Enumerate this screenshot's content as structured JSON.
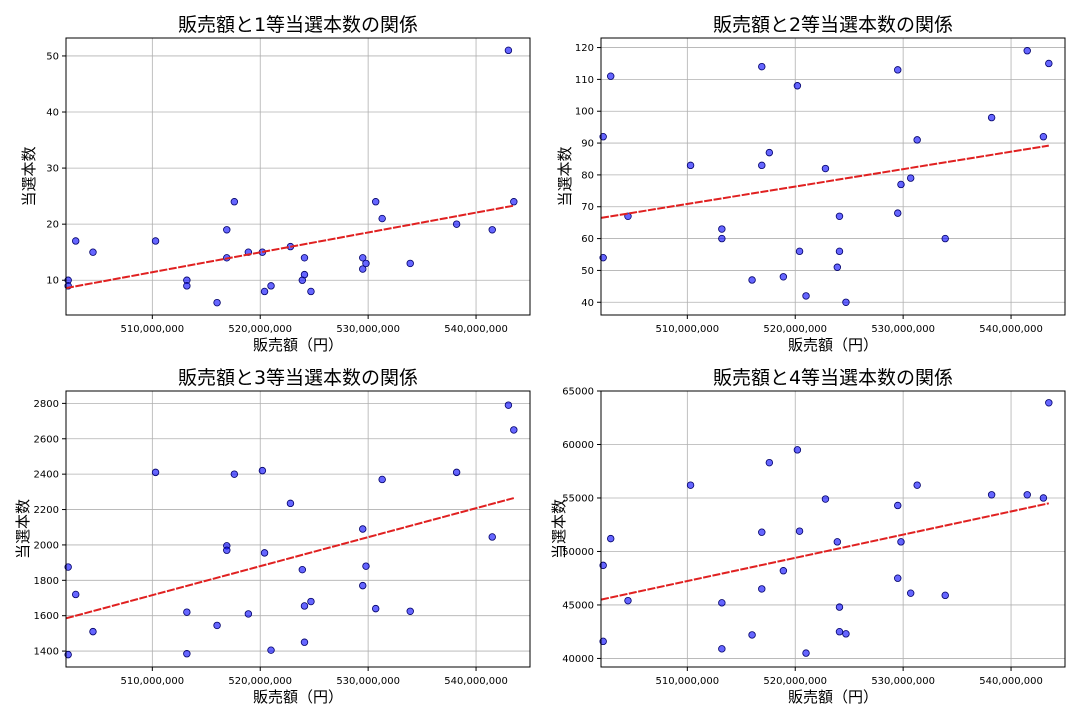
{
  "chart_data": [
    {
      "type": "scatter",
      "title": "販売額と1等当選本数の関係",
      "xlabel": "販売額（円）",
      "ylabel": "当選本数",
      "xlim": [
        502000000,
        545000000
      ],
      "ylim": [
        3.8,
        53.2
      ],
      "xticks": [
        510000000,
        520000000,
        530000000,
        540000000
      ],
      "xtick_labels": [
        "510,000,000",
        "520,000,000",
        "530,000,000",
        "540,000,000"
      ],
      "yticks": [
        10,
        20,
        30,
        40,
        50
      ],
      "ytick_labels": [
        "10",
        "20",
        "30",
        "40",
        "50"
      ],
      "grid": true,
      "trend": {
        "x": [
          502000000,
          543500000
        ],
        "y": [
          8.6,
          23.3
        ]
      },
      "x": [
        502200000,
        502200000,
        502900000,
        504500000,
        510300000,
        513200000,
        513200000,
        516000000,
        516900000,
        516900000,
        517600000,
        518900000,
        520200000,
        520400000,
        521000000,
        522800000,
        523900000,
        524100000,
        524100000,
        524700000,
        529500000,
        529500000,
        529800000,
        530700000,
        531300000,
        533900000,
        538200000,
        541500000,
        543000000,
        543500000
      ],
      "y": [
        10,
        9,
        17,
        15,
        17,
        10,
        9,
        6,
        19,
        14,
        24,
        15,
        15,
        8,
        9,
        16,
        10,
        14,
        11,
        8,
        14,
        12,
        13,
        24,
        21,
        13,
        20,
        19,
        51,
        24
      ]
    },
    {
      "type": "scatter",
      "title": "販売額と2等当選本数の関係",
      "xlabel": "販売額（円）",
      "ylabel": "当選本数",
      "xlim": [
        502000000,
        545000000
      ],
      "ylim": [
        36,
        123
      ],
      "xticks": [
        510000000,
        520000000,
        530000000,
        540000000
      ],
      "xtick_labels": [
        "510,000,000",
        "520,000,000",
        "530,000,000",
        "540,000,000"
      ],
      "yticks": [
        40,
        50,
        60,
        70,
        80,
        90,
        100,
        110,
        120
      ],
      "ytick_labels": [
        "40",
        "50",
        "60",
        "70",
        "80",
        "90",
        "100",
        "110",
        "120"
      ],
      "grid": true,
      "trend": {
        "x": [
          502000000,
          543500000
        ],
        "y": [
          66.5,
          89.2
        ]
      },
      "x": [
        502200000,
        502200000,
        502900000,
        504500000,
        510300000,
        513200000,
        513200000,
        516000000,
        516900000,
        516900000,
        517600000,
        518900000,
        520200000,
        520400000,
        521000000,
        522800000,
        523900000,
        524100000,
        524100000,
        524700000,
        529500000,
        529500000,
        529800000,
        530700000,
        531300000,
        533900000,
        538200000,
        541500000,
        543000000,
        543500000
      ],
      "y": [
        92,
        54,
        111,
        67,
        83,
        63,
        60,
        47,
        114,
        83,
        87,
        48,
        108,
        56,
        42,
        82,
        51,
        67,
        56,
        40,
        68,
        113,
        77,
        79,
        91,
        60,
        98,
        119,
        92,
        115
      ]
    },
    {
      "type": "scatter",
      "title": "販売額と3等当選本数の関係",
      "xlabel": "販売額（円）",
      "ylabel": "当選本数",
      "xlim": [
        502000000,
        545000000
      ],
      "ylim": [
        1310,
        2870
      ],
      "xticks": [
        510000000,
        520000000,
        530000000,
        540000000
      ],
      "xtick_labels": [
        "510,000,000",
        "520,000,000",
        "530,000,000",
        "540,000,000"
      ],
      "yticks": [
        1400,
        1600,
        1800,
        2000,
        2200,
        2400,
        2600,
        2800
      ],
      "ytick_labels": [
        "1400",
        "1600",
        "1800",
        "2000",
        "2200",
        "2400",
        "2600",
        "2800"
      ],
      "grid": true,
      "trend": {
        "x": [
          502000000,
          543500000
        ],
        "y": [
          1585,
          2265
        ]
      },
      "x": [
        502200000,
        502200000,
        502900000,
        504500000,
        510300000,
        513200000,
        513200000,
        516000000,
        516900000,
        516900000,
        517600000,
        518900000,
        520200000,
        520400000,
        521000000,
        522800000,
        523900000,
        524100000,
        524100000,
        524700000,
        529500000,
        529500000,
        529800000,
        530700000,
        531300000,
        533900000,
        538200000,
        541500000,
        543000000,
        543500000
      ],
      "y": [
        1875,
        1380,
        1720,
        1510,
        2410,
        1620,
        1385,
        1545,
        1995,
        1970,
        2400,
        1610,
        2420,
        1955,
        1405,
        2235,
        1860,
        1655,
        1450,
        1680,
        2090,
        1770,
        1880,
        1640,
        2370,
        1625,
        2410,
        2045,
        2790,
        2650
      ]
    },
    {
      "type": "scatter",
      "title": "販売額と4等当選本数の関係",
      "xlabel": "販売額（円）",
      "ylabel": "当選本数",
      "xlim": [
        502000000,
        545000000
      ],
      "ylim": [
        39200,
        65000
      ],
      "xticks": [
        510000000,
        520000000,
        530000000,
        540000000
      ],
      "xtick_labels": [
        "510,000,000",
        "520,000,000",
        "530,000,000",
        "540,000,000"
      ],
      "yticks": [
        40000,
        45000,
        50000,
        55000,
        60000,
        65000
      ],
      "ytick_labels": [
        "40000",
        "45000",
        "50000",
        "55000",
        "60000",
        "65000"
      ],
      "grid": true,
      "trend": {
        "x": [
          502000000,
          543500000
        ],
        "y": [
          45500,
          54500
        ]
      },
      "x": [
        502200000,
        502200000,
        502900000,
        504500000,
        510300000,
        513200000,
        513200000,
        516000000,
        516900000,
        516900000,
        517600000,
        518900000,
        520200000,
        520400000,
        521000000,
        522800000,
        523900000,
        524100000,
        524100000,
        524700000,
        529500000,
        529500000,
        529800000,
        530700000,
        531300000,
        533900000,
        538200000,
        541500000,
        543000000,
        543500000
      ],
      "y": [
        48700,
        41600,
        51200,
        45400,
        56200,
        45200,
        40900,
        42200,
        51800,
        46500,
        58300,
        48200,
        59500,
        51900,
        40500,
        54900,
        50900,
        44800,
        42500,
        42300,
        47500,
        54300,
        50900,
        46100,
        56200,
        45900,
        55300,
        55300,
        55000,
        63900
      ]
    }
  ]
}
